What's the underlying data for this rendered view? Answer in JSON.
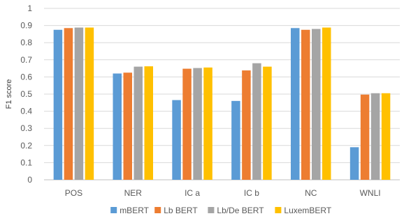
{
  "chart_data": {
    "type": "bar",
    "title": "",
    "xlabel": "",
    "ylabel": "F1 score",
    "ylim": [
      0,
      1
    ],
    "yticks": [
      "0",
      "0.1",
      "0.2",
      "0.3",
      "0.4",
      "0.5",
      "0.6",
      "0.7",
      "0.8",
      "0.9",
      "1"
    ],
    "grid": true,
    "legend_position": "bottom",
    "categories": [
      "POS",
      "NER",
      "IC a",
      "IC b",
      "NC",
      "WNLI"
    ],
    "series": [
      {
        "name": "mBERT",
        "color": "#5B9BD5",
        "values": [
          0.875,
          0.62,
          0.465,
          0.46,
          0.885,
          0.19
        ]
      },
      {
        "name": "Lb BERT",
        "color": "#ED7D31",
        "values": [
          0.885,
          0.625,
          0.648,
          0.638,
          0.875,
          0.497
        ]
      },
      {
        "name": "Lb/De BERT",
        "color": "#A5A5A5",
        "values": [
          0.888,
          0.66,
          0.652,
          0.68,
          0.88,
          0.505
        ]
      },
      {
        "name": "LuxemBERT",
        "color": "#FFC000",
        "values": [
          0.888,
          0.662,
          0.655,
          0.66,
          0.888,
          0.505
        ]
      }
    ]
  }
}
